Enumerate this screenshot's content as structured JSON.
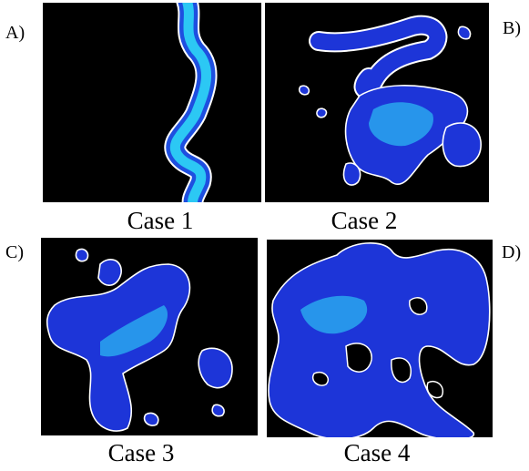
{
  "panels": [
    {
      "label": "A)",
      "caption": "Case 1"
    },
    {
      "label": "B)",
      "caption": "Case 2"
    },
    {
      "label": "C)",
      "caption": "Case 3"
    },
    {
      "label": "D)",
      "caption": "Case 4"
    }
  ]
}
